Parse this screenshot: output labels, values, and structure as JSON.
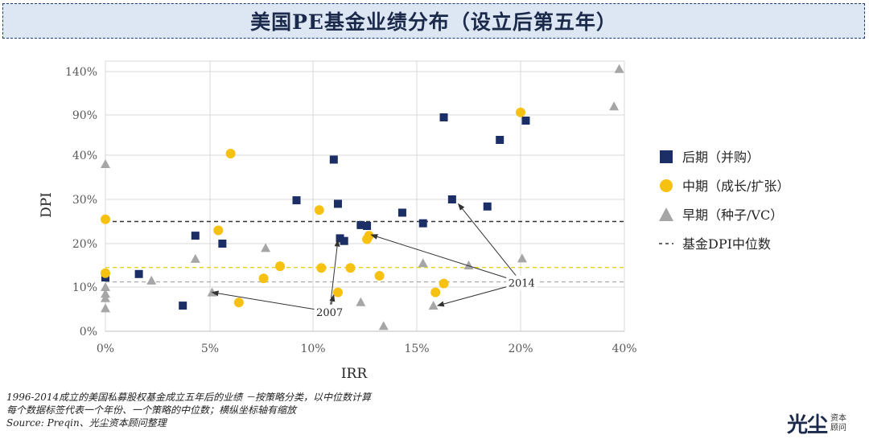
{
  "title": "美国PE基金业绩分布（设立后第五年）",
  "chart_data": {
    "type": "scatter",
    "xlabel": "IRR",
    "ylabel": "DPI",
    "x_ticks": [
      "0%",
      "5%",
      "10%",
      "15%",
      "20%",
      "40%"
    ],
    "y_ticks": [
      "0%",
      "10%",
      "20%",
      "30%",
      "40%",
      "90%",
      "140%"
    ],
    "x_axis_note": "axis is compressed above 20% (20% → 40% gap)",
    "y_axis_note": "axis is compressed above 40% (40% → 90% → 140%)",
    "grid": true,
    "legend_position": "right",
    "series": [
      {
        "name": "后期（并购）",
        "marker": "square",
        "color": "#1b2f66",
        "points": [
          [
            0.0,
            12.2
          ],
          [
            1.6,
            13.0
          ],
          [
            3.7,
            5.8
          ],
          [
            4.3,
            21.8
          ],
          [
            5.6,
            20.0
          ],
          [
            9.2,
            29.8
          ],
          [
            11.0,
            39.0
          ],
          [
            11.2,
            29.0
          ],
          [
            11.3,
            21.2
          ],
          [
            11.5,
            20.6
          ],
          [
            12.3,
            24.2
          ],
          [
            12.6,
            24.0
          ],
          [
            14.3,
            27.0
          ],
          [
            15.3,
            24.6
          ],
          [
            16.3,
            87.0
          ],
          [
            16.7,
            30.0
          ],
          [
            18.4,
            28.4
          ],
          [
            19.0,
            59.0
          ],
          [
            21.0,
            83.0
          ]
        ]
      },
      {
        "name": "中期（成长/扩张）",
        "marker": "circle",
        "color": "#f6c111",
        "points": [
          [
            0.0,
            25.5
          ],
          [
            0.0,
            13.2
          ],
          [
            5.4,
            23.0
          ],
          [
            6.0,
            42.0
          ],
          [
            6.4,
            6.5
          ],
          [
            7.6,
            12.0
          ],
          [
            8.4,
            14.8
          ],
          [
            10.3,
            27.6
          ],
          [
            10.4,
            14.4
          ],
          [
            11.2,
            8.8
          ],
          [
            11.8,
            14.4
          ],
          [
            12.6,
            21.0
          ],
          [
            12.7,
            21.8
          ],
          [
            13.2,
            12.6
          ],
          [
            15.9,
            8.8
          ],
          [
            16.3,
            10.8
          ],
          [
            20.0,
            93.0
          ]
        ]
      },
      {
        "name": "早期（种子/VC）",
        "marker": "triangle",
        "color": "#a6a6a6",
        "points": [
          [
            0.0,
            38.0
          ],
          [
            0.0,
            10.0
          ],
          [
            0.0,
            8.5
          ],
          [
            0.0,
            7.5
          ],
          [
            0.0,
            5.2
          ],
          [
            2.2,
            11.5
          ],
          [
            4.3,
            16.5
          ],
          [
            5.1,
            8.8
          ],
          [
            7.7,
            19.0
          ],
          [
            12.3,
            6.6
          ],
          [
            13.4,
            1.2
          ],
          [
            15.3,
            15.5
          ],
          [
            15.8,
            5.8
          ],
          [
            17.5,
            15.0
          ],
          [
            20.3,
            16.6
          ],
          [
            38.0,
            100.0
          ],
          [
            39.0,
            143.0
          ]
        ]
      }
    ],
    "median_lines": [
      {
        "name": "基金DPI中位数",
        "series": "后期（并购）",
        "y": 25.0,
        "color": "#333333"
      },
      {
        "series": "中期（成长/扩张）",
        "y": 14.5,
        "color": "#e5d21a"
      },
      {
        "series": "早期（种子/VC）",
        "y": 11.2,
        "color": "#b0b0b0"
      }
    ],
    "annotations": [
      {
        "text": "2007",
        "from": [
          10.8,
          4.4
        ],
        "to": [
          [
            5.1,
            8.8
          ],
          [
            11.2,
            20.8
          ],
          [
            11.0,
            8.2
          ]
        ]
      },
      {
        "text": "2014",
        "from": [
          20.2,
          11.0
        ],
        "to": [
          [
            17.0,
            29.0
          ],
          [
            12.8,
            22.0
          ],
          [
            16.0,
            5.8
          ]
        ]
      }
    ]
  },
  "legend": {
    "items": [
      {
        "label": "后期（并购）",
        "marker": "square",
        "color": "#1b2f66"
      },
      {
        "label": "中期（成长/扩张）",
        "marker": "circle",
        "color": "#f6c111"
      },
      {
        "label": "早期（种子/VC）",
        "marker": "triangle",
        "color": "#a6a6a6"
      },
      {
        "label": "基金DPI中位数",
        "marker": "dashed-line",
        "color": "#333333"
      }
    ]
  },
  "notes": {
    "line1": "1996-2014成立的美国私募股权基金成立五年后的业绩 －按策略分类，以中位数计算",
    "line2": "每个数据标签代表一个年份、一个策略的中位数；横纵坐标轴有缩放",
    "line3": "Source: Preqin、光尘资本顾问整理"
  },
  "logo": {
    "main": "光尘",
    "sub_top": "资本",
    "sub_bottom": "顾问"
  }
}
